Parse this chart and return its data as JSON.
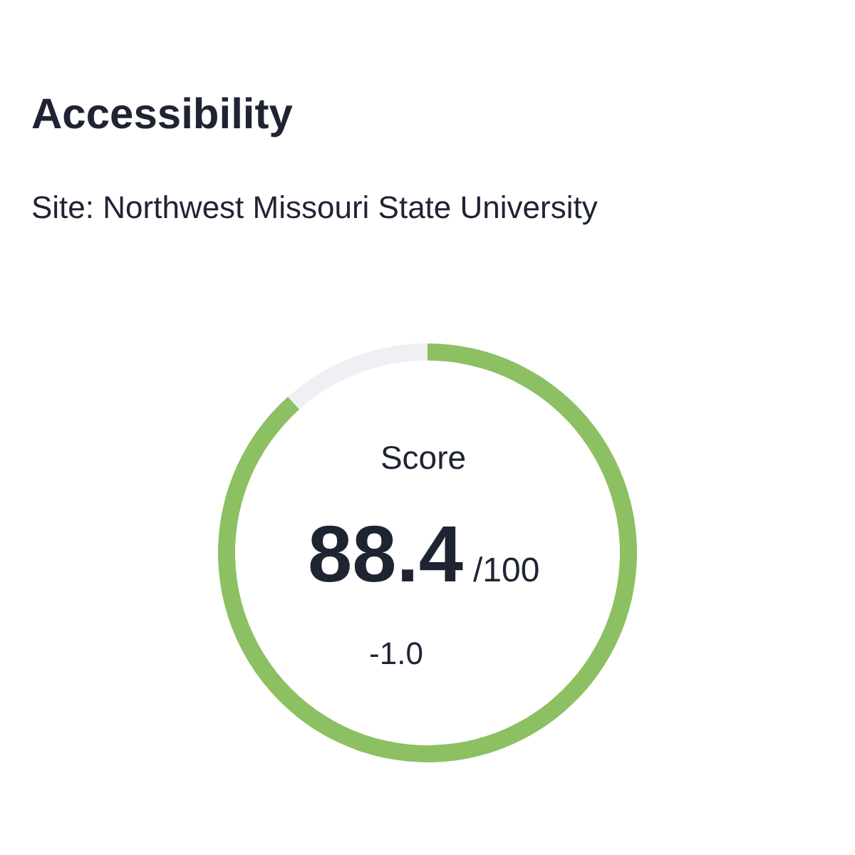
{
  "chart_data": {
    "type": "donut",
    "title": "Accessibility",
    "subtitle": "Site: Northwest Missouri State University",
    "categories": [
      null,
      null
    ],
    "values": [
      88.4,
      11.6
    ],
    "colors": [
      "#8cc063",
      "#eef0f3"
    ],
    "value_labels": [
      "88.4",
      null
    ],
    "annotations": [
      "Score",
      "/100",
      "-1.0"
    ]
  }
}
